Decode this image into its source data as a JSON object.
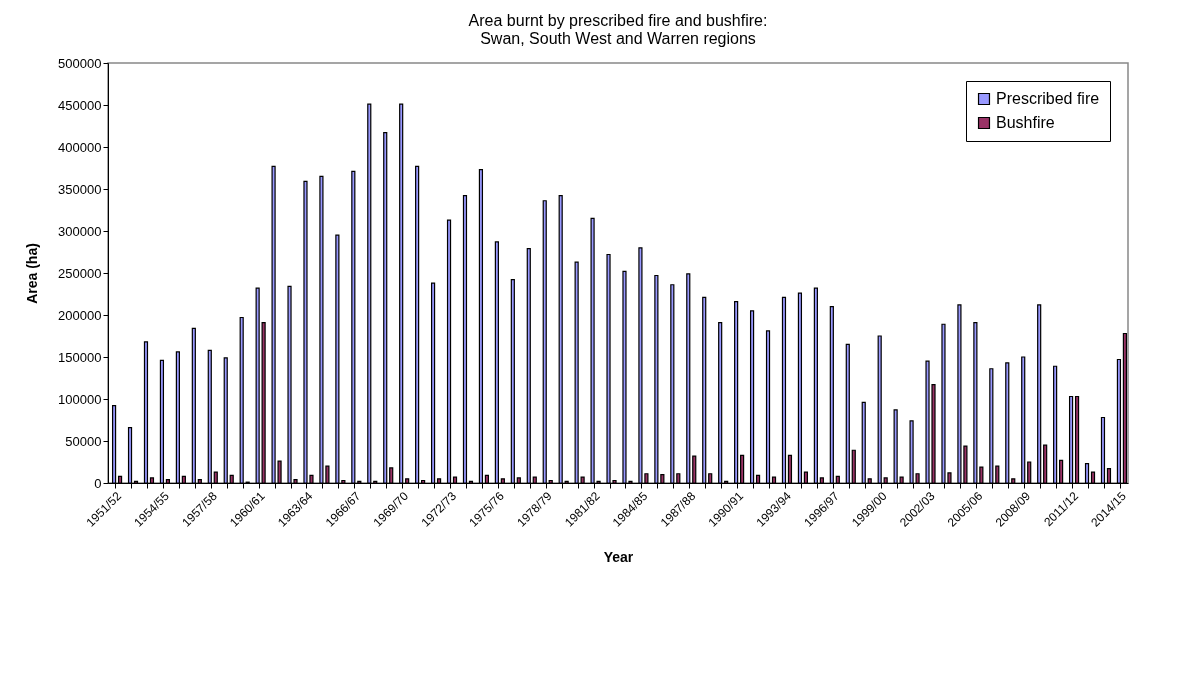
{
  "chart_data": {
    "type": "bar",
    "title": [
      "Area burnt by prescribed fire and bushfire:",
      "Swan, South West and Warren regions"
    ],
    "xlabel": "Year",
    "ylabel": "Area (ha)",
    "categories": [
      "1951/52",
      null,
      null,
      "1954/55",
      null,
      null,
      "1957/58",
      null,
      null,
      "1960/61",
      null,
      null,
      "1963/64",
      null,
      null,
      "1966/67",
      null,
      null,
      "1969/70",
      null,
      null,
      "1972/73",
      null,
      null,
      "1975/76",
      null,
      null,
      "1978/79",
      null,
      null,
      "1981/82",
      null,
      null,
      "1984/85",
      null,
      null,
      "1987/88",
      null,
      null,
      "1990/91",
      null,
      null,
      "1993/94",
      null,
      null,
      "1996/97",
      null,
      null,
      "1999/00",
      null,
      null,
      "2002/03",
      null,
      null,
      "2005/06",
      null,
      null,
      "2008/09",
      null,
      null,
      "2011/12",
      null,
      null,
      "2014/15"
    ],
    "series": [
      {
        "name": "Prescribed fire",
        "color": "#9999ff",
        "values": [
          92000,
          66000,
          168000,
          146000,
          156000,
          184000,
          158000,
          149000,
          197000,
          232000,
          377000,
          234000,
          359000,
          365000,
          295000,
          371000,
          451000,
          417000,
          451000,
          377000,
          238000,
          313000,
          342000,
          373000,
          287000,
          242000,
          279000,
          336000,
          342000,
          263000,
          315000,
          272000,
          252000,
          280000,
          247000,
          236000,
          249000,
          221000,
          191000,
          216000,
          205000,
          181000,
          221000,
          226000,
          232000,
          210000,
          165000,
          96000,
          175000,
          87000,
          74000,
          145000,
          189000,
          212000,
          191000,
          136000,
          143000,
          150000,
          212000,
          139000,
          103000,
          23000,
          78000,
          147000
        ]
      },
      {
        "name": "Bushfire",
        "color": "#993366",
        "values": [
          8000,
          2000,
          6000,
          4000,
          8000,
          4000,
          13000,
          9000,
          1000,
          191000,
          26000,
          4000,
          9000,
          20000,
          3000,
          2000,
          2000,
          18000,
          5000,
          3000,
          5000,
          7000,
          2000,
          9000,
          5000,
          6000,
          7000,
          3000,
          2000,
          7000,
          2000,
          3000,
          2000,
          11000,
          10000,
          11000,
          32000,
          11000,
          2000,
          33000,
          9000,
          7000,
          33000,
          13000,
          6000,
          8000,
          39000,
          5000,
          6000,
          7000,
          11000,
          117000,
          12000,
          44000,
          19000,
          20000,
          5000,
          25000,
          45000,
          27000,
          103000,
          13000,
          17000,
          178000
        ]
      }
    ],
    "ylim": [
      0,
      500000
    ],
    "yticks": [
      0,
      50000,
      100000,
      150000,
      200000,
      250000,
      300000,
      350000,
      400000,
      450000,
      500000
    ],
    "grid": false,
    "legend": "top right"
  }
}
